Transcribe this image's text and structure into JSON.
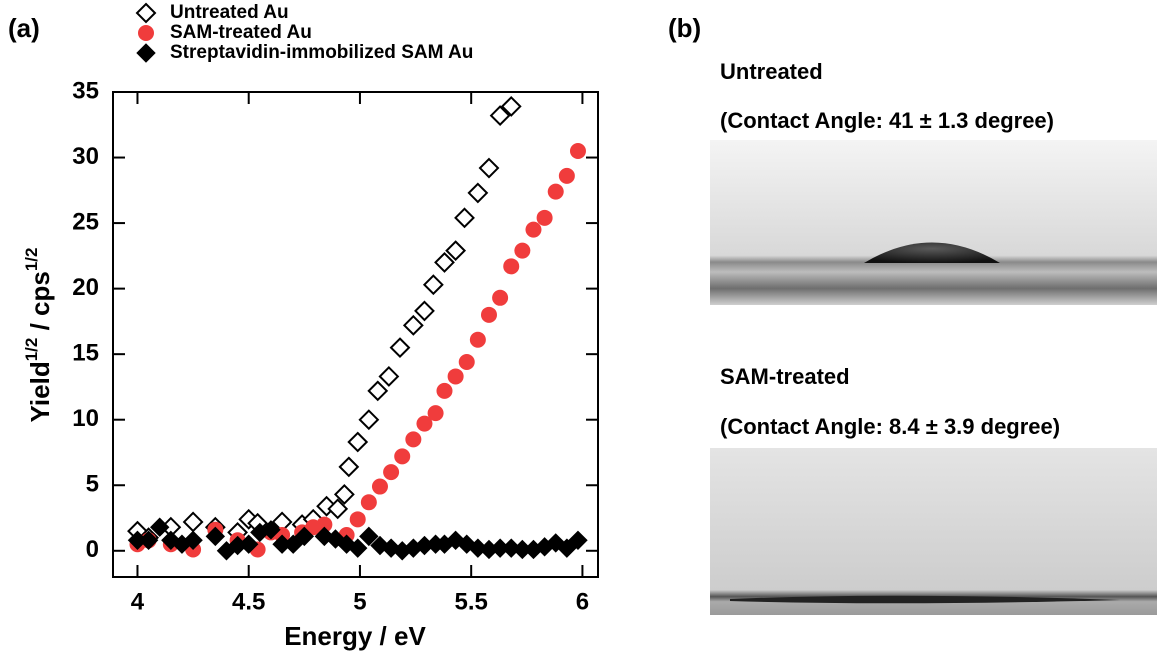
{
  "chart_data": {
    "type": "scatter",
    "panel_label": "(a)",
    "xlabel": "Energy / eV",
    "ylabel": [
      "Yield",
      "1/2",
      " / cps",
      "1/2"
    ],
    "xlim": [
      3.89,
      6.07
    ],
    "ylim": [
      -2,
      35
    ],
    "xticks": [
      4,
      4.5,
      5,
      5.5,
      6
    ],
    "yticks": [
      0,
      5,
      10,
      15,
      20,
      25,
      30,
      35
    ],
    "series": [
      {
        "name": "Untreated Au",
        "color": "#000000",
        "marker": "diamond-open",
        "x": [
          4,
          4.05,
          4.15,
          4.25,
          4.35,
          4.45,
          4.5,
          4.54,
          4.65,
          4.74,
          4.79,
          4.85,
          4.9,
          4.93,
          4.95,
          4.99,
          5.04,
          5.08,
          5.13,
          5.18,
          5.24,
          5.29,
          5.33,
          5.38,
          5.43,
          5.47,
          5.53,
          5.58,
          5.63,
          5.68
        ],
        "values": [
          1.5,
          1.0,
          1.8,
          2.2,
          1.8,
          1.4,
          2.4,
          2.1,
          2.2,
          2.0,
          2.4,
          3.4,
          3.2,
          4.3,
          6.4,
          8.3,
          10.0,
          12.2,
          13.3,
          15.5,
          17.2,
          18.3,
          20.3,
          22.0,
          22.9,
          25.4,
          27.3,
          29.2,
          33.2,
          33.9
        ]
      },
      {
        "name": "SAM-treated Au",
        "color": "#f03c3c",
        "marker": "circle",
        "x": [
          4,
          4.05,
          4.15,
          4.25,
          4.35,
          4.45,
          4.54,
          4.6,
          4.65,
          4.74,
          4.79,
          4.84,
          4.94,
          4.99,
          5.04,
          5.09,
          5.14,
          5.19,
          5.24,
          5.29,
          5.34,
          5.38,
          5.43,
          5.48,
          5.53,
          5.58,
          5.63,
          5.68,
          5.73,
          5.78,
          5.83,
          5.88,
          5.93,
          5.98
        ],
        "values": [
          0.5,
          0.8,
          0.5,
          0.1,
          1.6,
          0.8,
          0.1,
          1.4,
          1.2,
          1.4,
          1.8,
          2.0,
          1.2,
          2.4,
          3.7,
          4.9,
          6.0,
          7.2,
          8.5,
          9.7,
          10.5,
          12.2,
          13.3,
          14.4,
          16.1,
          18.0,
          19.3,
          21.7,
          22.9,
          24.5,
          25.4,
          27.4,
          28.6,
          30.5
        ]
      },
      {
        "name": "Streptavidin-immobilized SAM Au",
        "color": "#000000",
        "marker": "diamond",
        "x": [
          4,
          4.05,
          4.1,
          4.15,
          4.2,
          4.25,
          4.35,
          4.4,
          4.45,
          4.5,
          4.55,
          4.6,
          4.65,
          4.7,
          4.75,
          4.84,
          4.89,
          4.94,
          4.99,
          5.04,
          5.09,
          5.14,
          5.19,
          5.24,
          5.29,
          5.34,
          5.38,
          5.43,
          5.48,
          5.53,
          5.58,
          5.63,
          5.68,
          5.73,
          5.78,
          5.83,
          5.88,
          5.93,
          5.98
        ],
        "values": [
          0.8,
          0.8,
          1.8,
          0.8,
          0.5,
          0.8,
          1.1,
          0,
          0.4,
          0.5,
          1.4,
          1.6,
          0.5,
          0.5,
          1.1,
          1.1,
          0.9,
          0.5,
          0.2,
          1.1,
          0.4,
          0.2,
          0,
          0.2,
          0.4,
          0.5,
          0.5,
          0.8,
          0.5,
          0.2,
          0.1,
          0.2,
          0.2,
          0.1,
          0.1,
          0.3,
          0.6,
          0.2,
          0.8
        ]
      }
    ]
  },
  "panel_b": {
    "label": "(b)",
    "images": [
      {
        "title": "Untreated",
        "caption": "(Contact Angle: 41 ± 1.3 degree)"
      },
      {
        "title": "SAM-treated",
        "caption": "(Contact Angle: 8.4 ± 3.9 degree)"
      }
    ]
  }
}
